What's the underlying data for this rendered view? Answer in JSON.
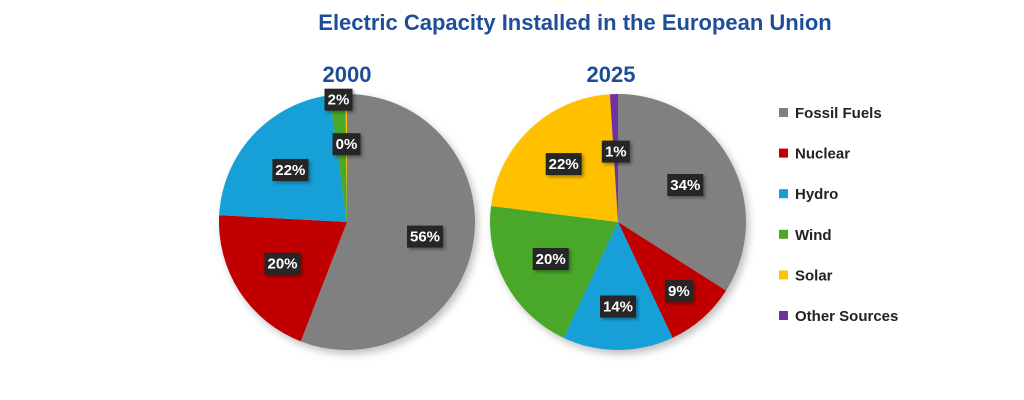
{
  "chart_data": {
    "type": "pie",
    "title": "Electric Capacity Installed in the European Union",
    "legend_position": "right",
    "series_names": [
      "Fossil Fuels",
      "Nuclear",
      "Hydro",
      "Wind",
      "Solar",
      "Other Sources"
    ],
    "colors": {
      "Fossil Fuels": "#808080",
      "Nuclear": "#c00000",
      "Hydro": "#12a0d7",
      "Wind": "#4aa72c",
      "Solar": "#ffc000",
      "Other Sources": "#7030a0"
    },
    "pies": [
      {
        "subtitle": "2000",
        "slices": [
          {
            "name": "Fossil Fuels",
            "value": 56,
            "label": "56%"
          },
          {
            "name": "Nuclear",
            "value": 20,
            "label": "20%"
          },
          {
            "name": "Hydro",
            "value": 22,
            "label": "22%"
          },
          {
            "name": "Wind",
            "value": 2,
            "label": "2%"
          },
          {
            "name": "Solar",
            "value": 0.2,
            "label": "0%"
          }
        ]
      },
      {
        "subtitle": "2025",
        "slices": [
          {
            "name": "Fossil Fuels",
            "value": 34,
            "label": "34%"
          },
          {
            "name": "Nuclear",
            "value": 9,
            "label": "9%"
          },
          {
            "name": "Hydro",
            "value": 14,
            "label": "14%"
          },
          {
            "name": "Wind",
            "value": 20,
            "label": "20%"
          },
          {
            "name": "Solar",
            "value": 22,
            "label": "22%"
          },
          {
            "name": "Other Sources",
            "value": 1,
            "label": "1%"
          }
        ]
      }
    ]
  }
}
